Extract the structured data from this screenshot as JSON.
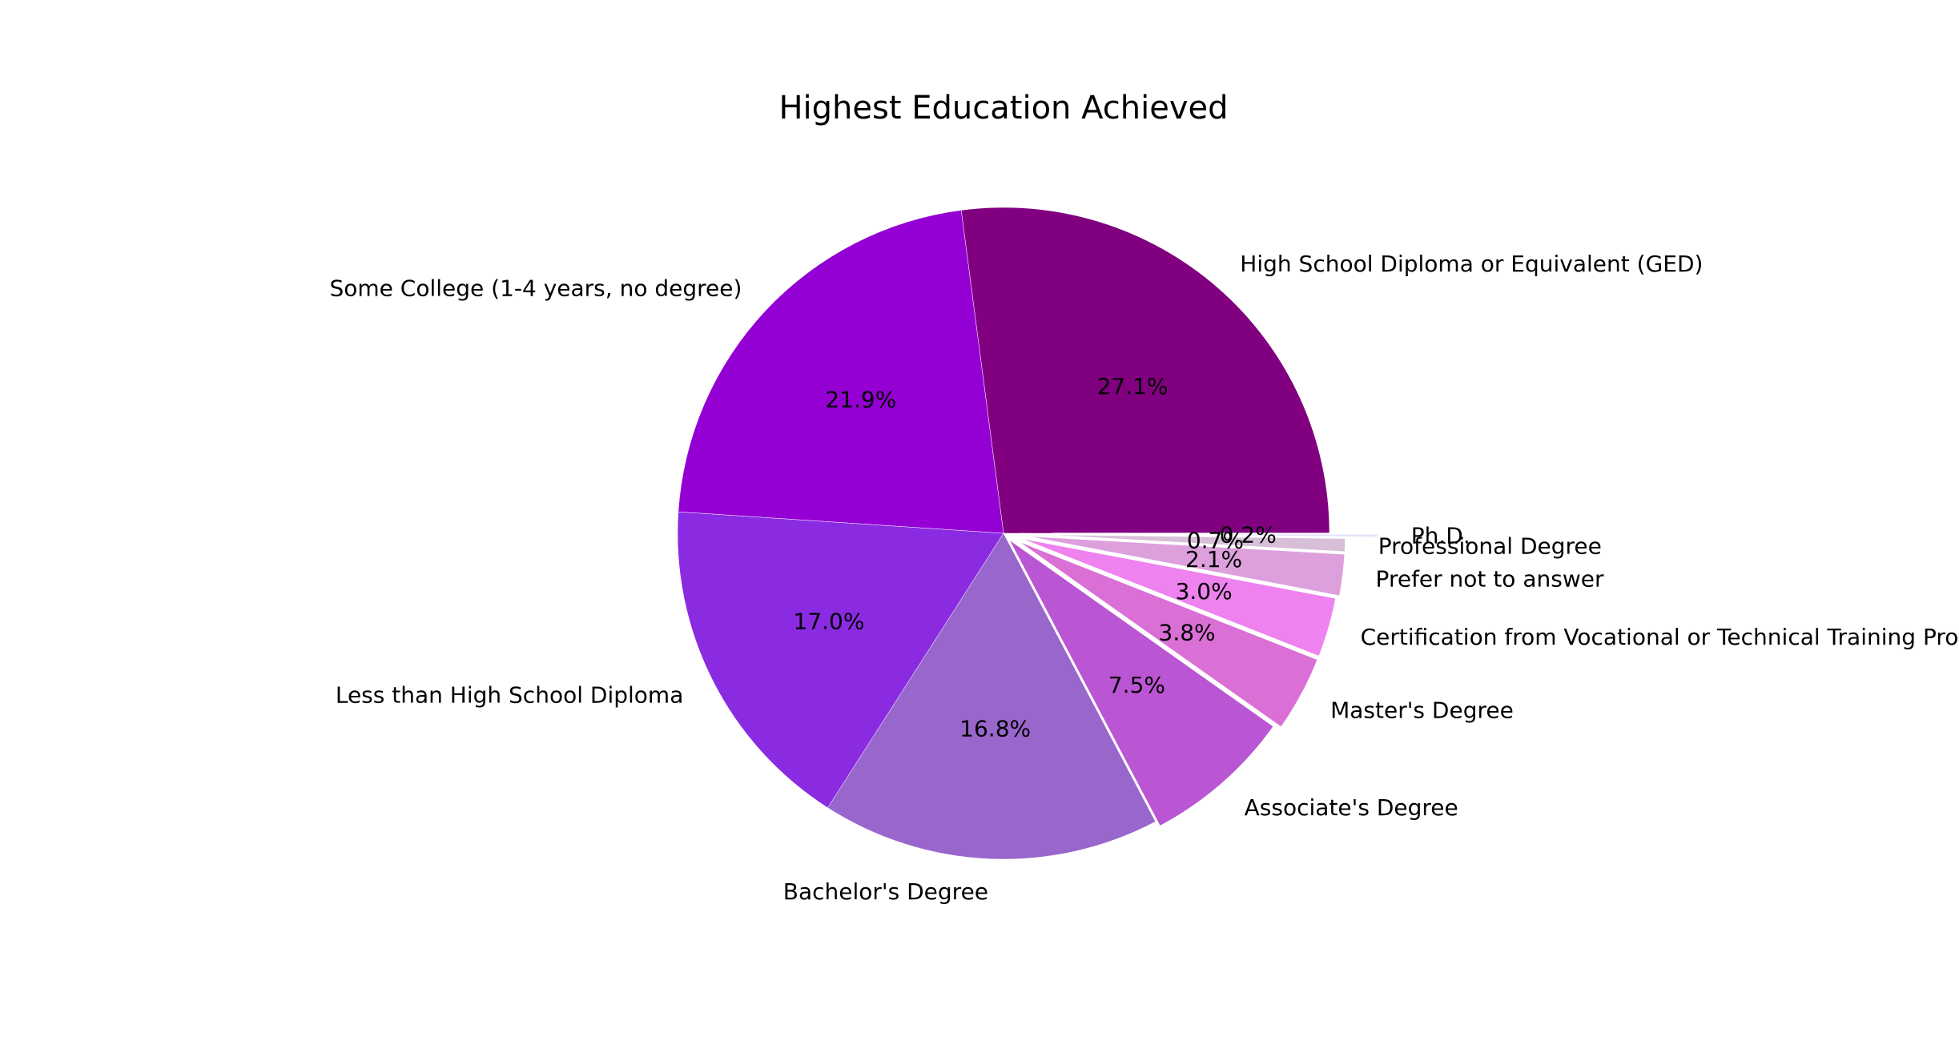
{
  "chart_data": {
    "type": "pie",
    "title": "Highest Education Achieved",
    "slices": [
      {
        "label": "High School Diploma or Equivalent (GED)",
        "value": 27.1,
        "pct_text": "27.1%",
        "color": "#800080",
        "explode": 0
      },
      {
        "label": "Some College (1-4 years, no degree)",
        "value": 21.9,
        "pct_text": "21.9%",
        "color": "#9400D3",
        "explode": 0
      },
      {
        "label": "Less than High School Diploma",
        "value": 17.0,
        "pct_text": "17.0%",
        "color": "#8A2BE2",
        "explode": 0
      },
      {
        "label": "Bachelor's Degree",
        "value": 16.8,
        "pct_text": "16.8%",
        "color": "#9966CC",
        "explode": 0
      },
      {
        "label": "Associate's Degree",
        "value": 7.5,
        "pct_text": "7.5%",
        "color": "#BA55D3",
        "explode": 0.02
      },
      {
        "label": "Master's Degree",
        "value": 3.8,
        "pct_text": "3.8%",
        "color": "#DA70D6",
        "explode": 0.04
      },
      {
        "label": "Certification from Vocational or Technical Training Program",
        "value": 3.0,
        "pct_text": "3.0%",
        "color": "#EE82EE",
        "explode": 0.04
      },
      {
        "label": "Prefer not to answer",
        "value": 2.1,
        "pct_text": "2.1%",
        "color": "#DDA0DD",
        "explode": 0.05
      },
      {
        "label": "Professional Degree",
        "value": 0.7,
        "pct_text": "0.7%",
        "color": "#D8BFD8",
        "explode": 0.05
      },
      {
        "label": "Ph.D.",
        "value": 0.2,
        "pct_text": "0.2%",
        "color": "#E6E6FA",
        "explode": 0.15
      }
    ],
    "start_angle_deg": 0,
    "direction": "counterclockwise",
    "legend": "none"
  }
}
